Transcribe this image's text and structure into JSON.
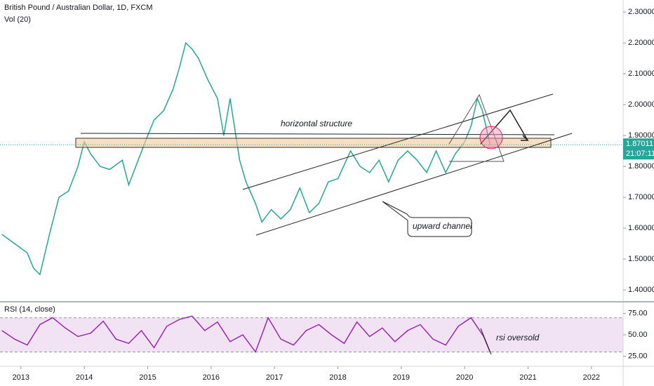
{
  "chart_data": [
    {
      "type": "line",
      "title": "British Pound / Australian Dollar, 1D, FXCM",
      "subtitle": "Vol (20)",
      "color": "#26a69a",
      "x": [
        2012.7,
        2012.9,
        2013.1,
        2013.2,
        2013.3,
        2013.45,
        2013.6,
        2013.75,
        2013.9,
        2014.0,
        2014.1,
        2014.25,
        2014.4,
        2014.6,
        2014.7,
        2014.85,
        2015.0,
        2015.1,
        2015.25,
        2015.4,
        2015.5,
        2015.6,
        2015.7,
        2015.8,
        2015.95,
        2016.1,
        2016.2,
        2016.3,
        2016.45,
        2016.55,
        2016.7,
        2016.8,
        2016.95,
        2017.1,
        2017.25,
        2017.4,
        2017.55,
        2017.7,
        2017.85,
        2018.0,
        2018.2,
        2018.35,
        2018.5,
        2018.65,
        2018.8,
        2018.95,
        2019.1,
        2019.25,
        2019.4,
        2019.55,
        2019.7,
        2019.85,
        2020.0,
        2020.1,
        2020.2,
        2020.28,
        2020.4
      ],
      "values": [
        1.58,
        1.55,
        1.52,
        1.47,
        1.45,
        1.58,
        1.7,
        1.72,
        1.8,
        1.88,
        1.84,
        1.8,
        1.79,
        1.82,
        1.74,
        1.82,
        1.9,
        1.95,
        1.98,
        2.05,
        2.12,
        2.2,
        2.18,
        2.15,
        2.08,
        2.02,
        1.9,
        2.02,
        1.82,
        1.75,
        1.68,
        1.62,
        1.66,
        1.63,
        1.66,
        1.73,
        1.65,
        1.68,
        1.75,
        1.76,
        1.85,
        1.8,
        1.78,
        1.82,
        1.75,
        1.82,
        1.85,
        1.82,
        1.78,
        1.85,
        1.78,
        1.84,
        1.88,
        1.93,
        2.02,
        1.98,
        1.87
      ],
      "xlim": [
        2012.67,
        2022.5
      ],
      "xticks": [
        2013,
        2014,
        2015,
        2016,
        2017,
        2018,
        2019,
        2020,
        2021,
        2022
      ],
      "ylim": [
        1.3616,
        2.3388
      ],
      "yticks": [
        {
          "value": 1.4,
          "label": "1.40000"
        },
        {
          "value": 1.5,
          "label": "1.50000"
        },
        {
          "value": 1.6,
          "label": "1.60000"
        },
        {
          "value": 1.7,
          "label": "1.70000"
        },
        {
          "value": 1.8,
          "label": "1.80000"
        },
        {
          "value": 1.9,
          "label": "1.90000"
        },
        {
          "value": 2.0,
          "label": "2.00000"
        },
        {
          "value": 2.1,
          "label": "2.10000"
        },
        {
          "value": 2.2,
          "label": "2.20000"
        },
        {
          "value": 2.3,
          "label": "2.30000"
        }
      ],
      "last_price": {
        "value": 1.87011,
        "label": "1.87011"
      },
      "countdown": "21:07:11",
      "annotations": [
        "horizontal structure",
        "upward channel"
      ]
    },
    {
      "type": "line",
      "title": "RSI (14, close)",
      "color": "#9c27b0",
      "x": [
        2012.7,
        2012.9,
        2013.1,
        2013.3,
        2013.5,
        2013.7,
        2013.9,
        2014.1,
        2014.3,
        2014.5,
        2014.7,
        2014.9,
        2015.1,
        2015.3,
        2015.5,
        2015.7,
        2015.9,
        2016.1,
        2016.3,
        2016.5,
        2016.7,
        2016.9,
        2017.1,
        2017.3,
        2017.5,
        2017.7,
        2017.9,
        2018.1,
        2018.3,
        2018.5,
        2018.7,
        2018.9,
        2019.1,
        2019.3,
        2019.5,
        2019.7,
        2019.9,
        2020.1,
        2020.3,
        2020.4
      ],
      "values": [
        55,
        45,
        38,
        62,
        70,
        58,
        48,
        52,
        66,
        45,
        40,
        55,
        35,
        60,
        68,
        72,
        55,
        65,
        42,
        50,
        30,
        70,
        45,
        38,
        55,
        62,
        50,
        40,
        65,
        48,
        58,
        42,
        55,
        62,
        45,
        38,
        60,
        70,
        48,
        30
      ],
      "band": [
        30,
        70
      ],
      "ylim": [
        14.8,
        87
      ],
      "yticks": [
        {
          "value": 25,
          "label": "25.00"
        },
        {
          "value": 50,
          "label": "50.00"
        },
        {
          "value": 75,
          "label": "75.00"
        }
      ],
      "annotations": [
        "rsi oversold"
      ]
    }
  ]
}
